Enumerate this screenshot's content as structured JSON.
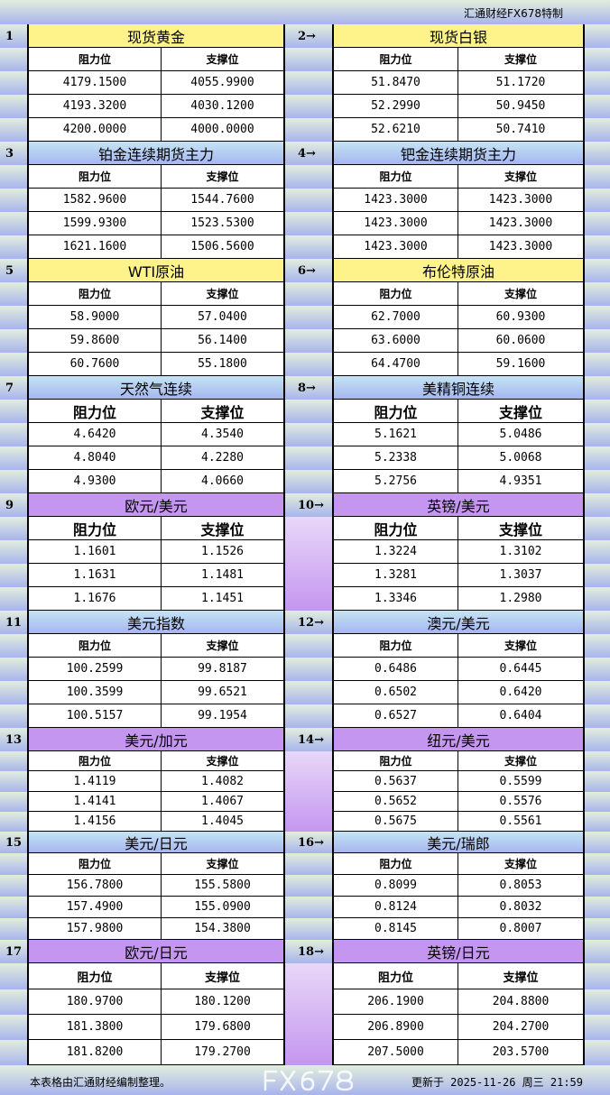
{
  "brand": "汇通财经FX678特制",
  "header_labels": {
    "resistance": "阻力位",
    "support": "支撑位"
  },
  "blocks": [
    {
      "left": {
        "num": "1",
        "title": "现货黄金",
        "color": "yellow",
        "rows": [
          [
            "4179.1500",
            "4055.9900"
          ],
          [
            "4193.3200",
            "4030.1200"
          ],
          [
            "4200.0000",
            "4000.0000"
          ]
        ]
      },
      "right": {
        "num": "2→",
        "title": "现货白银",
        "color": "yellow",
        "rows": [
          [
            "51.8470",
            "51.1720"
          ],
          [
            "52.2990",
            "50.9450"
          ],
          [
            "52.6210",
            "50.7410"
          ]
        ]
      }
    },
    {
      "left": {
        "num": "3",
        "title": "铂金连续期货主力",
        "color": "blue",
        "rows": [
          [
            "1582.9600",
            "1544.7600"
          ],
          [
            "1599.9300",
            "1523.5300"
          ],
          [
            "1621.1600",
            "1506.5600"
          ]
        ]
      },
      "right": {
        "num": "4→",
        "title": "钯金连续期货主力",
        "color": "blue",
        "rows": [
          [
            "1423.3000",
            "1423.3000"
          ],
          [
            "1423.3000",
            "1423.3000"
          ],
          [
            "1423.3000",
            "1423.3000"
          ]
        ]
      }
    },
    {
      "left": {
        "num": "5",
        "title": "WTI原油",
        "color": "yellow",
        "rows": [
          [
            "58.9000",
            "57.0400"
          ],
          [
            "59.8600",
            "56.1400"
          ],
          [
            "60.7600",
            "55.1800"
          ]
        ]
      },
      "right": {
        "num": "6→",
        "title": "布伦特原油",
        "color": "yellow",
        "rows": [
          [
            "62.7000",
            "60.9300"
          ],
          [
            "63.6000",
            "60.0600"
          ],
          [
            "64.4700",
            "59.1600"
          ]
        ]
      }
    },
    {
      "left": {
        "num": "7",
        "title": "天然气连续",
        "color": "blue",
        "rows": [
          [
            "4.6420",
            "4.3540"
          ],
          [
            "4.8040",
            "4.2280"
          ],
          [
            "4.9300",
            "4.0660"
          ]
        ]
      },
      "right": {
        "num": "8→",
        "title": "美精铜连续",
        "color": "blue",
        "rows": [
          [
            "5.1621",
            "5.0486"
          ],
          [
            "5.2338",
            "5.0068"
          ],
          [
            "5.2756",
            "4.9351"
          ]
        ]
      }
    },
    {
      "left": {
        "num": "9",
        "title": "欧元/美元",
        "color": "purple",
        "rows": [
          [
            "1.1601",
            "1.1526"
          ],
          [
            "1.1631",
            "1.1481"
          ],
          [
            "1.1676",
            "1.1451"
          ]
        ]
      },
      "right": {
        "num": "10→",
        "title": "英镑/美元",
        "color": "purple",
        "rows": [
          [
            "1.3224",
            "1.3102"
          ],
          [
            "1.3281",
            "1.3037"
          ],
          [
            "1.3346",
            "1.2980"
          ]
        ]
      }
    },
    {
      "left": {
        "num": "11",
        "title": "美元指数",
        "color": "blue",
        "rows": [
          [
            "100.2599",
            "99.8187"
          ],
          [
            "100.3599",
            "99.6521"
          ],
          [
            "100.5157",
            "99.1954"
          ]
        ]
      },
      "right": {
        "num": "12→",
        "title": "澳元/美元",
        "color": "blue",
        "rows": [
          [
            "0.6486",
            "0.6445"
          ],
          [
            "0.6502",
            "0.6420"
          ],
          [
            "0.6527",
            "0.6404"
          ]
        ]
      }
    },
    {
      "left": {
        "num": "13",
        "title": "美元/加元",
        "color": "purple",
        "rows": [
          [
            "1.4119",
            "1.4082"
          ],
          [
            "1.4141",
            "1.4067"
          ],
          [
            "1.4156",
            "1.4045"
          ]
        ]
      },
      "right": {
        "num": "14→",
        "title": "纽元/美元",
        "color": "purple",
        "rows": [
          [
            "0.5637",
            "0.5599"
          ],
          [
            "0.5652",
            "0.5576"
          ],
          [
            "0.5675",
            "0.5561"
          ]
        ]
      }
    },
    {
      "left": {
        "num": "15",
        "title": "美元/日元",
        "color": "blue",
        "rows": [
          [
            "156.7800",
            "155.5800"
          ],
          [
            "157.4900",
            "155.0900"
          ],
          [
            "157.9800",
            "154.3800"
          ]
        ]
      },
      "right": {
        "num": "16→",
        "title": "美元/瑞郎",
        "color": "blue",
        "rows": [
          [
            "0.8099",
            "0.8053"
          ],
          [
            "0.8124",
            "0.8032"
          ],
          [
            "0.8145",
            "0.8007"
          ]
        ]
      }
    },
    {
      "left": {
        "num": "17",
        "title": "欧元/日元",
        "color": "purple",
        "rows": [
          [
            "180.9700",
            "180.1200"
          ],
          [
            "181.3800",
            "179.6800"
          ],
          [
            "181.8200",
            "179.2700"
          ]
        ]
      },
      "right": {
        "num": "18→",
        "title": "英镑/日元",
        "color": "purple",
        "rows": [
          [
            "206.1900",
            "204.8800"
          ],
          [
            "206.8900",
            "204.2700"
          ],
          [
            "207.5000",
            "203.5700"
          ]
        ]
      }
    }
  ],
  "footer": {
    "note": "本表格由汇通财经编制整理。",
    "updated": "更新于 2025-11-26 周三 21:59"
  },
  "watermark": "FX678"
}
